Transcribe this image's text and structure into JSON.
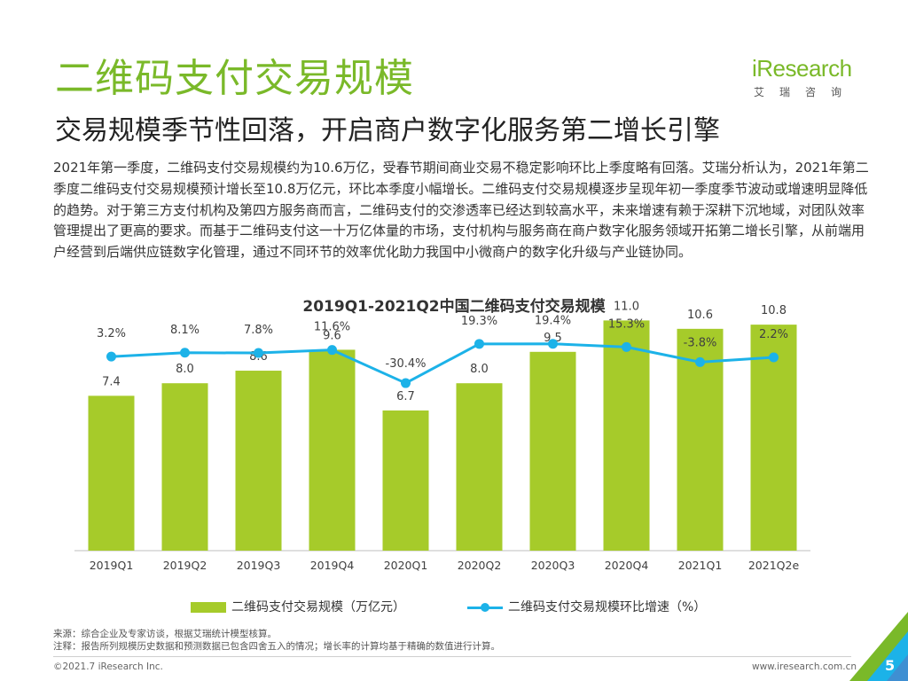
{
  "page": {
    "title": "二维码支付交易规模",
    "subtitle": "交易规模季节性回落，开启商户数字化服务第二增长引擎",
    "logo_text": "iResearch",
    "logo_cn": "艾瑞咨询",
    "paragraph": "2021年第一季度，二维码支付交易规模约为10.6万亿，受春节期间商业交易不稳定影响环比上季度略有回落。艾瑞分析认为，2021年第二季度二维码支付交易规模预计增长至10.8万亿元，环比本季度小幅增长。二维码支付交易规模逐步呈现年初一季度季节波动或增速明显降低的趋势。对于第三方支付机构及第四方服务商而言，二维码支付的交渗透率已经达到较高水平，未来增速有赖于深耕下沉地域，对团队效率管理提出了更高的要求。而基于二维码支付这一十万亿体量的市场，支付机构与服务商在商户数字化服务领域开拓第二增长引擎，从前端用户经营到后端供应链数字化管理，通过不同环节的效率优化助力我国中小微商户的数字化升级与产业链协同。",
    "source_line1": "来源：综合企业及专家访谈，根据艾瑞统计模型核算。",
    "source_line2": "注释：报告所列规模历史数据和预测数据已包含四舍五入的情况；增长率的计算均基于精确的数值进行计算。",
    "copyright": "©2021.7 iResearch Inc.",
    "site": "www.iresearch.com.cn",
    "page_number": "5",
    "colors": {
      "brand_green": "#7ab929",
      "bar": "#a6cb2a",
      "line": "#1cb2e8"
    }
  },
  "chart_data": {
    "type": "bar",
    "title": "2019Q1-2021Q2中国二维码支付交易规模",
    "categories": [
      "2019Q1",
      "2019Q2",
      "2019Q3",
      "2019Q4",
      "2020Q1",
      "2020Q2",
      "2020Q3",
      "2020Q4",
      "2021Q1",
      "2021Q2e"
    ],
    "series": [
      {
        "name": "二维码支付交易规模（万亿元）",
        "type": "bar",
        "values": [
          7.4,
          8.0,
          8.6,
          9.6,
          6.7,
          8.0,
          9.5,
          11.0,
          10.6,
          10.8
        ],
        "labels": [
          "7.4",
          "8.0",
          "8.6",
          "9.6",
          "6.7",
          "8.0",
          "9.5",
          "11.0",
          "10.6",
          "10.8"
        ]
      },
      {
        "name": "二维码支付交易规模环比增速（%）",
        "type": "line",
        "values": [
          3.2,
          8.1,
          7.8,
          11.6,
          -30.4,
          19.3,
          19.4,
          15.3,
          -3.8,
          2.2
        ],
        "labels": [
          "3.2%",
          "8.1%",
          "7.8%",
          "11.6%",
          "-30.4%",
          "19.3%",
          "19.4%",
          "15.3%",
          "-3.8%",
          "2.2%"
        ]
      }
    ],
    "legend_position": "bottom",
    "grid": false
  }
}
